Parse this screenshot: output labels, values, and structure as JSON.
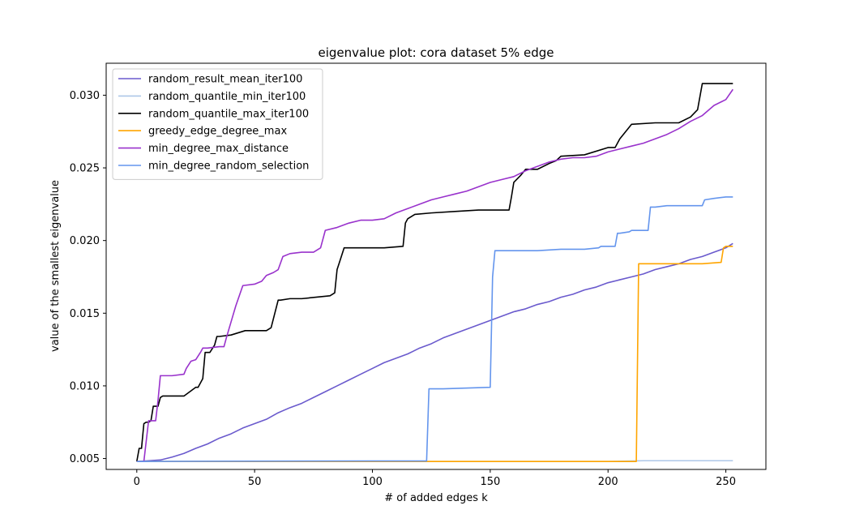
{
  "chart_data": {
    "type": "line",
    "title": "eigenvalue plot: cora dataset 5% edge",
    "xlabel": "# of added edges k",
    "ylabel": "value of the smallest eigenvalue",
    "xlim": [
      -13,
      267
    ],
    "ylim": [
      0.00425,
      0.0322
    ],
    "xticks": [
      0,
      50,
      100,
      150,
      200,
      250
    ],
    "xtick_labels": [
      "0",
      "50",
      "100",
      "150",
      "200",
      "250"
    ],
    "yticks": [
      0.005,
      0.01,
      0.015,
      0.02,
      0.025,
      0.03
    ],
    "ytick_labels": [
      "0.005",
      "0.010",
      "0.015",
      "0.020",
      "0.025",
      "0.030"
    ],
    "grid": false,
    "legend_position": "upper-left",
    "series": [
      {
        "name": "random_result_mean_iter100",
        "color": "#6a5acd",
        "x": [
          0,
          5,
          10,
          15,
          20,
          25,
          30,
          35,
          40,
          45,
          50,
          55,
          60,
          65,
          70,
          75,
          80,
          85,
          90,
          95,
          100,
          105,
          110,
          115,
          120,
          125,
          130,
          135,
          140,
          145,
          150,
          155,
          160,
          165,
          170,
          175,
          180,
          185,
          190,
          195,
          200,
          205,
          210,
          215,
          220,
          225,
          230,
          235,
          240,
          245,
          250,
          253
        ],
        "y": [
          0.0048,
          0.00485,
          0.0049,
          0.0051,
          0.00535,
          0.0057,
          0.006,
          0.0064,
          0.0067,
          0.0071,
          0.0074,
          0.0077,
          0.00815,
          0.0085,
          0.0088,
          0.0092,
          0.0096,
          0.01,
          0.0104,
          0.0108,
          0.0112,
          0.0116,
          0.0119,
          0.0122,
          0.0126,
          0.0129,
          0.0133,
          0.0136,
          0.0139,
          0.0142,
          0.0145,
          0.0148,
          0.0151,
          0.0153,
          0.0156,
          0.0158,
          0.0161,
          0.0163,
          0.0166,
          0.0168,
          0.0171,
          0.0173,
          0.0175,
          0.0177,
          0.018,
          0.0182,
          0.0184,
          0.0187,
          0.0189,
          0.0192,
          0.0195,
          0.0198
        ]
      },
      {
        "name": "random_quantile_min_iter100",
        "color": "#aec7e8",
        "x": [
          0,
          50,
          100,
          150,
          200,
          215,
          253
        ],
        "y": [
          0.0048,
          0.0048,
          0.0048,
          0.0048,
          0.0048,
          0.00485,
          0.00485
        ]
      },
      {
        "name": "random_quantile_max_iter100",
        "color": "#000000",
        "x": [
          0,
          1,
          2,
          3,
          4,
          5,
          6,
          7,
          8,
          9,
          10,
          11,
          16,
          20,
          25,
          26,
          28,
          29,
          31,
          33,
          34,
          35,
          40,
          46,
          55,
          57,
          60,
          61,
          65,
          70,
          76,
          82,
          84,
          85,
          86,
          88,
          105,
          113,
          114,
          115,
          118,
          125,
          135,
          145,
          150,
          158,
          159,
          160,
          163,
          165,
          170,
          175,
          178,
          180,
          190,
          200,
          203,
          205,
          210,
          220,
          225,
          230,
          235,
          238,
          240,
          248,
          253
        ],
        "y": [
          0.0048,
          0.0057,
          0.0057,
          0.0074,
          0.0075,
          0.0075,
          0.0076,
          0.0086,
          0.0086,
          0.0086,
          0.0092,
          0.0093,
          0.0093,
          0.0093,
          0.0099,
          0.0099,
          0.0105,
          0.0123,
          0.0123,
          0.0128,
          0.0134,
          0.0134,
          0.0135,
          0.0138,
          0.0138,
          0.014,
          0.0159,
          0.0159,
          0.016,
          0.016,
          0.0161,
          0.0162,
          0.0164,
          0.018,
          0.0185,
          0.0195,
          0.0195,
          0.0196,
          0.0212,
          0.0215,
          0.0218,
          0.0219,
          0.022,
          0.0221,
          0.0221,
          0.0221,
          0.023,
          0.024,
          0.0245,
          0.0249,
          0.0249,
          0.0253,
          0.0255,
          0.0258,
          0.0259,
          0.0264,
          0.0264,
          0.027,
          0.028,
          0.0281,
          0.0281,
          0.0281,
          0.0285,
          0.029,
          0.0308,
          0.0308,
          0.0308
        ]
      },
      {
        "name": "greedy_edge_degree_max",
        "color": "#ffa500",
        "x": [
          0,
          50,
          100,
          150,
          200,
          212,
          213,
          215,
          220,
          240,
          248,
          249,
          250,
          253
        ],
        "y": [
          0.0048,
          0.0048,
          0.0048,
          0.0048,
          0.0048,
          0.0048,
          0.0184,
          0.0184,
          0.0184,
          0.0184,
          0.0185,
          0.0195,
          0.0196,
          0.0196
        ]
      },
      {
        "name": "min_degree_max_distance",
        "color": "#9932cc",
        "x": [
          0,
          3,
          5,
          8,
          9,
          10,
          12,
          15,
          20,
          21,
          23,
          25,
          27,
          28,
          30,
          35,
          37,
          38,
          40,
          42,
          45,
          50,
          53,
          55,
          58,
          60,
          62,
          65,
          70,
          75,
          78,
          80,
          85,
          90,
          95,
          100,
          105,
          110,
          115,
          120,
          125,
          130,
          135,
          140,
          145,
          150,
          155,
          160,
          165,
          170,
          175,
          180,
          185,
          190,
          195,
          200,
          205,
          210,
          215,
          220,
          225,
          230,
          235,
          240,
          245,
          250,
          253
        ],
        "y": [
          0.0048,
          0.0048,
          0.0076,
          0.0076,
          0.009,
          0.0107,
          0.0107,
          0.0107,
          0.0108,
          0.0112,
          0.0117,
          0.0118,
          0.0123,
          0.0126,
          0.0126,
          0.0127,
          0.0127,
          0.0133,
          0.0144,
          0.0155,
          0.0169,
          0.017,
          0.0172,
          0.0176,
          0.0178,
          0.018,
          0.0189,
          0.0191,
          0.0192,
          0.0192,
          0.0195,
          0.0207,
          0.0209,
          0.0212,
          0.0214,
          0.0214,
          0.0215,
          0.0219,
          0.0222,
          0.0225,
          0.0228,
          0.023,
          0.0232,
          0.0234,
          0.0237,
          0.024,
          0.0242,
          0.0244,
          0.0248,
          0.0251,
          0.0254,
          0.0256,
          0.0257,
          0.0257,
          0.0258,
          0.0261,
          0.0263,
          0.0265,
          0.0267,
          0.027,
          0.0273,
          0.0277,
          0.0282,
          0.0286,
          0.0293,
          0.0297,
          0.0304
        ]
      },
      {
        "name": "min_degree_random_selection",
        "color": "#6495ed",
        "x": [
          0,
          50,
          100,
          123,
          124,
          130,
          150,
          151,
          152,
          160,
          170,
          180,
          190,
          196,
          197,
          200,
          203,
          204,
          205,
          209,
          210,
          215,
          217,
          218,
          220,
          225,
          230,
          240,
          241,
          245,
          250,
          253
        ],
        "y": [
          0.0048,
          0.00482,
          0.00483,
          0.00483,
          0.0098,
          0.0098,
          0.0099,
          0.0175,
          0.0193,
          0.0193,
          0.0193,
          0.0194,
          0.0194,
          0.0195,
          0.0196,
          0.0196,
          0.0196,
          0.0205,
          0.0205,
          0.0206,
          0.0207,
          0.0207,
          0.0207,
          0.0223,
          0.0223,
          0.0224,
          0.0224,
          0.0224,
          0.0228,
          0.0229,
          0.023,
          0.023
        ]
      }
    ]
  }
}
